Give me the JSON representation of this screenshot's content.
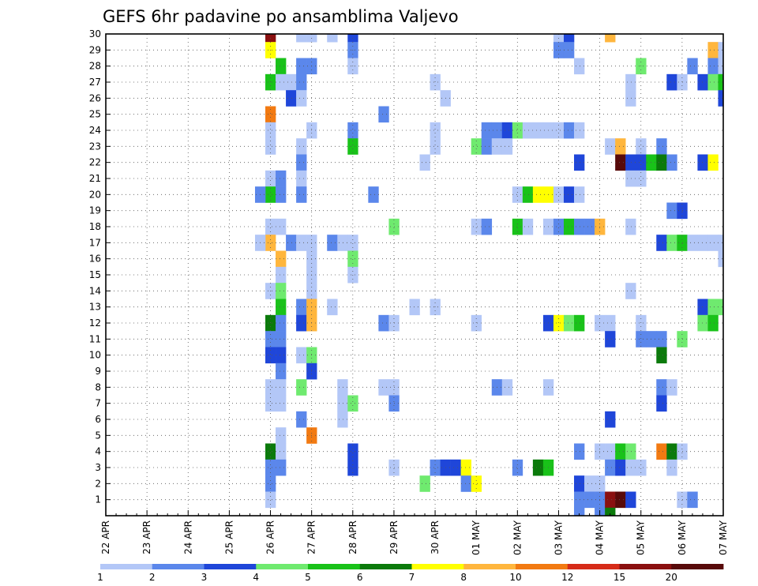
{
  "chart_data": {
    "type": "heatmap",
    "title": "GEFS 6hr padavine po ansamblima Valjevo",
    "xlabel": "",
    "ylabel": "",
    "x_tick_labels": [
      "22 APR",
      "23 APR",
      "24 APR",
      "25 APR",
      "26 APR",
      "27 APR",
      "28 APR",
      "29 APR",
      "30 APR",
      "01 MAY",
      "02 MAY",
      "03 MAY",
      "04 MAY",
      "05 MAY",
      "06 MAY",
      "07 MAY"
    ],
    "y_tick_labels": [
      "1",
      "2",
      "3",
      "4",
      "5",
      "6",
      "7",
      "8",
      "9",
      "10",
      "11",
      "12",
      "13",
      "14",
      "15",
      "16",
      "17",
      "18",
      "19",
      "20",
      "21",
      "22",
      "23",
      "24",
      "25",
      "26",
      "27",
      "28",
      "29",
      "30"
    ],
    "xlim": [
      0,
      60
    ],
    "ylim": [
      0,
      30
    ],
    "grid": true,
    "legend": "bottom",
    "colorbar": {
      "labels": [
        "1",
        "2",
        "3",
        "4",
        "5",
        "6",
        "7",
        "8",
        "10",
        "12",
        "15",
        "20"
      ],
      "colors": [
        "#b3c7f7",
        "#5b87eb",
        "#1f46d9",
        "#6fea6f",
        "#19c219",
        "#0b7a0b",
        "#ffff00",
        "#ffb63d",
        "#f27a12",
        "#d62b18",
        "#8a1010",
        "#580a0a"
      ]
    },
    "cells": [
      [
        16,
        30,
        10
      ],
      [
        16,
        29,
        6
      ],
      [
        16,
        27,
        4
      ],
      [
        16,
        25,
        8
      ],
      [
        16,
        24,
        0
      ],
      [
        16,
        23,
        0
      ],
      [
        16,
        21,
        0
      ],
      [
        16,
        20,
        4
      ],
      [
        16,
        18,
        0
      ],
      [
        16,
        17,
        7
      ],
      [
        16,
        14,
        0
      ],
      [
        16,
        12,
        5
      ],
      [
        16,
        11,
        1
      ],
      [
        16,
        10,
        2
      ],
      [
        16,
        8,
        0
      ],
      [
        16,
        7,
        0
      ],
      [
        16,
        4,
        5
      ],
      [
        16,
        3,
        1
      ],
      [
        16,
        2,
        1
      ],
      [
        16,
        1,
        0
      ],
      [
        15,
        20,
        1
      ],
      [
        15,
        17,
        0
      ],
      [
        17,
        28,
        4
      ],
      [
        17,
        27,
        0
      ],
      [
        17,
        21,
        1
      ],
      [
        17,
        20,
        1
      ],
      [
        17,
        18,
        0
      ],
      [
        17,
        16,
        7
      ],
      [
        17,
        15,
        0
      ],
      [
        17,
        14,
        3
      ],
      [
        17,
        13,
        4
      ],
      [
        17,
        12,
        1
      ],
      [
        17,
        11,
        1
      ],
      [
        17,
        10,
        2
      ],
      [
        17,
        9,
        1
      ],
      [
        17,
        8,
        0
      ],
      [
        17,
        7,
        0
      ],
      [
        17,
        5,
        0
      ],
      [
        17,
        4,
        0
      ],
      [
        17,
        3,
        1
      ],
      [
        18,
        27,
        0
      ],
      [
        18,
        26,
        2
      ],
      [
        18,
        17,
        1
      ],
      [
        19,
        30,
        0
      ],
      [
        19,
        28,
        1
      ],
      [
        19,
        27,
        1
      ],
      [
        19,
        26,
        0
      ],
      [
        19,
        23,
        0
      ],
      [
        19,
        22,
        1
      ],
      [
        19,
        21,
        0
      ],
      [
        19,
        20,
        1
      ],
      [
        19,
        17,
        0
      ],
      [
        19,
        13,
        1
      ],
      [
        19,
        12,
        2
      ],
      [
        19,
        10,
        0
      ],
      [
        19,
        8,
        3
      ],
      [
        19,
        6,
        1
      ],
      [
        20,
        30,
        0
      ],
      [
        20,
        28,
        1
      ],
      [
        20,
        24,
        0
      ],
      [
        20,
        17,
        0
      ],
      [
        20,
        16,
        0
      ],
      [
        20,
        15,
        0
      ],
      [
        20,
        14,
        0
      ],
      [
        20,
        13,
        7
      ],
      [
        20,
        12,
        7
      ],
      [
        20,
        10,
        3
      ],
      [
        20,
        9,
        2
      ],
      [
        20,
        5,
        8
      ],
      [
        22,
        30,
        0
      ],
      [
        22,
        17,
        1
      ],
      [
        22,
        13,
        0
      ],
      [
        23,
        17,
        0
      ],
      [
        23,
        8,
        0
      ],
      [
        23,
        7,
        0
      ],
      [
        23,
        6,
        0
      ],
      [
        24,
        30,
        2
      ],
      [
        24,
        29,
        1
      ],
      [
        24,
        28,
        0
      ],
      [
        24,
        24,
        1
      ],
      [
        24,
        23,
        4
      ],
      [
        24,
        17,
        0
      ],
      [
        24,
        16,
        3
      ],
      [
        24,
        15,
        0
      ],
      [
        24,
        7,
        3
      ],
      [
        24,
        4,
        2
      ],
      [
        24,
        3,
        2
      ],
      [
        26,
        20,
        1
      ],
      [
        27,
        25,
        1
      ],
      [
        27,
        12,
        1
      ],
      [
        27,
        8,
        0
      ],
      [
        28,
        18,
        3
      ],
      [
        28,
        12,
        0
      ],
      [
        28,
        8,
        0
      ],
      [
        28,
        7,
        1
      ],
      [
        28,
        3,
        0
      ],
      [
        30,
        13,
        0
      ],
      [
        31,
        22,
        0
      ],
      [
        31,
        2,
        3
      ],
      [
        32,
        27,
        0
      ],
      [
        32,
        24,
        0
      ],
      [
        32,
        23,
        0
      ],
      [
        32,
        13,
        0
      ],
      [
        32,
        3,
        1
      ],
      [
        33,
        26,
        0
      ],
      [
        33,
        3,
        2
      ],
      [
        34,
        3,
        2
      ],
      [
        35,
        3,
        6
      ],
      [
        35,
        2,
        1
      ],
      [
        36,
        23,
        3
      ],
      [
        36,
        18,
        0
      ],
      [
        36,
        12,
        0
      ],
      [
        36,
        2,
        6
      ],
      [
        37,
        24,
        1
      ],
      [
        37,
        23,
        1
      ],
      [
        37,
        18,
        1
      ],
      [
        38,
        24,
        1
      ],
      [
        38,
        23,
        0
      ],
      [
        38,
        8,
        1
      ],
      [
        39,
        24,
        2
      ],
      [
        39,
        23,
        0
      ],
      [
        39,
        8,
        0
      ],
      [
        40,
        24,
        3
      ],
      [
        40,
        20,
        0
      ],
      [
        40,
        18,
        4
      ],
      [
        40,
        3,
        1
      ],
      [
        41,
        24,
        0
      ],
      [
        41,
        20,
        4
      ],
      [
        41,
        18,
        0
      ],
      [
        42,
        24,
        0
      ],
      [
        42,
        20,
        6
      ],
      [
        42,
        3,
        5
      ],
      [
        43,
        24,
        0
      ],
      [
        43,
        20,
        6
      ],
      [
        43,
        18,
        0
      ],
      [
        43,
        12,
        2
      ],
      [
        43,
        8,
        0
      ],
      [
        43,
        3,
        4
      ],
      [
        44,
        30,
        0
      ],
      [
        44,
        29,
        1
      ],
      [
        44,
        24,
        0
      ],
      [
        44,
        20,
        0
      ],
      [
        44,
        18,
        1
      ],
      [
        44,
        12,
        6
      ],
      [
        45,
        30,
        2
      ],
      [
        45,
        29,
        1
      ],
      [
        45,
        24,
        1
      ],
      [
        45,
        20,
        2
      ],
      [
        45,
        18,
        4
      ],
      [
        45,
        12,
        3
      ],
      [
        46,
        28,
        0
      ],
      [
        46,
        24,
        0
      ],
      [
        46,
        22,
        2
      ],
      [
        46,
        20,
        0
      ],
      [
        46,
        18,
        1
      ],
      [
        46,
        12,
        4
      ],
      [
        46,
        4,
        1
      ],
      [
        46,
        2,
        2
      ],
      [
        46,
        1,
        1
      ],
      [
        46,
        0,
        1
      ],
      [
        47,
        18,
        1
      ],
      [
        47,
        2,
        0
      ],
      [
        47,
        1,
        1
      ],
      [
        48,
        18,
        7
      ],
      [
        48,
        12,
        0
      ],
      [
        48,
        4,
        0
      ],
      [
        48,
        2,
        0
      ],
      [
        48,
        1,
        1
      ],
      [
        48,
        0,
        1
      ],
      [
        49,
        30,
        7
      ],
      [
        49,
        23,
        0
      ],
      [
        49,
        12,
        0
      ],
      [
        49,
        11,
        2
      ],
      [
        49,
        6,
        2
      ],
      [
        49,
        4,
        0
      ],
      [
        49,
        3,
        1
      ],
      [
        49,
        1,
        10
      ],
      [
        49,
        0,
        5
      ],
      [
        50,
        23,
        7
      ],
      [
        50,
        22,
        11
      ],
      [
        50,
        4,
        4
      ],
      [
        50,
        3,
        2
      ],
      [
        50,
        1,
        11
      ],
      [
        51,
        27,
        0
      ],
      [
        51,
        26,
        0
      ],
      [
        51,
        22,
        2
      ],
      [
        51,
        21,
        0
      ],
      [
        51,
        18,
        0
      ],
      [
        51,
        14,
        0
      ],
      [
        51,
        4,
        3
      ],
      [
        51,
        3,
        0
      ],
      [
        51,
        1,
        2
      ],
      [
        52,
        28,
        3
      ],
      [
        52,
        23,
        0
      ],
      [
        52,
        22,
        2
      ],
      [
        52,
        21,
        0
      ],
      [
        52,
        12,
        0
      ],
      [
        52,
        11,
        1
      ],
      [
        52,
        3,
        0
      ],
      [
        53,
        22,
        4
      ],
      [
        53,
        11,
        1
      ],
      [
        54,
        23,
        1
      ],
      [
        54,
        22,
        5
      ],
      [
        54,
        17,
        2
      ],
      [
        54,
        11,
        1
      ],
      [
        54,
        10,
        5
      ],
      [
        54,
        8,
        1
      ],
      [
        54,
        7,
        2
      ],
      [
        54,
        4,
        8
      ],
      [
        55,
        27,
        2
      ],
      [
        55,
        22,
        1
      ],
      [
        55,
        19,
        1
      ],
      [
        55,
        17,
        3
      ],
      [
        55,
        8,
        0
      ],
      [
        55,
        4,
        5
      ],
      [
        55,
        3,
        0
      ],
      [
        56,
        27,
        0
      ],
      [
        56,
        19,
        2
      ],
      [
        56,
        17,
        4
      ],
      [
        56,
        11,
        3
      ],
      [
        56,
        4,
        0
      ],
      [
        56,
        1,
        0
      ],
      [
        57,
        28,
        1
      ],
      [
        57,
        17,
        0
      ],
      [
        57,
        1,
        1
      ],
      [
        58,
        27,
        2
      ],
      [
        58,
        22,
        2
      ],
      [
        58,
        17,
        0
      ],
      [
        58,
        13,
        2
      ],
      [
        58,
        12,
        3
      ],
      [
        59,
        29,
        7
      ],
      [
        59,
        28,
        1
      ],
      [
        59,
        27,
        3
      ],
      [
        59,
        22,
        6
      ],
      [
        59,
        17,
        0
      ],
      [
        59,
        13,
        3
      ],
      [
        59,
        12,
        4
      ],
      [
        60,
        29,
        0
      ],
      [
        60,
        28,
        0
      ],
      [
        60,
        27,
        4
      ],
      [
        60,
        26,
        2
      ],
      [
        60,
        17,
        0
      ],
      [
        60,
        16,
        0
      ],
      [
        60,
        13,
        3
      ]
    ]
  }
}
